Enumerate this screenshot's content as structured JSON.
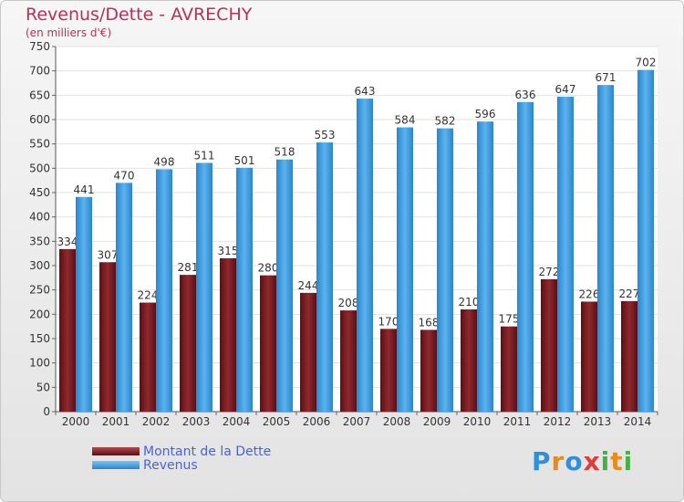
{
  "chart_data": {
    "type": "bar",
    "title": "Revenus/Dette - AVRECHY",
    "subtitle": "(en milliers d'€)",
    "categories": [
      "2000",
      "2001",
      "2002",
      "2003",
      "2004",
      "2005",
      "2006",
      "2007",
      "2008",
      "2009",
      "2010",
      "2011",
      "2012",
      "2013",
      "2014"
    ],
    "series": [
      {
        "name": "Montant de la Dette",
        "color": "#7a1f25",
        "values": [
          334,
          307,
          224,
          281,
          315,
          280,
          244,
          208,
          170,
          168,
          210,
          175,
          272,
          226,
          227
        ]
      },
      {
        "name": "Revenus",
        "color": "#3d9fe3",
        "values": [
          441,
          470,
          498,
          511,
          501,
          518,
          553,
          643,
          584,
          582,
          596,
          636,
          647,
          671,
          702
        ]
      }
    ],
    "ylim": [
      0,
      750
    ],
    "ytick_step": 50,
    "grid": true,
    "legend_position": "bottom-left"
  },
  "brand": {
    "letters": [
      "P",
      "r",
      "o",
      "x",
      "i",
      "t",
      "i"
    ],
    "colors": [
      "#2f8fd8",
      "#e88a1c",
      "#2f8fd8",
      "#e23b3b",
      "#45b043",
      "#e88a1c",
      "#45b043"
    ]
  }
}
